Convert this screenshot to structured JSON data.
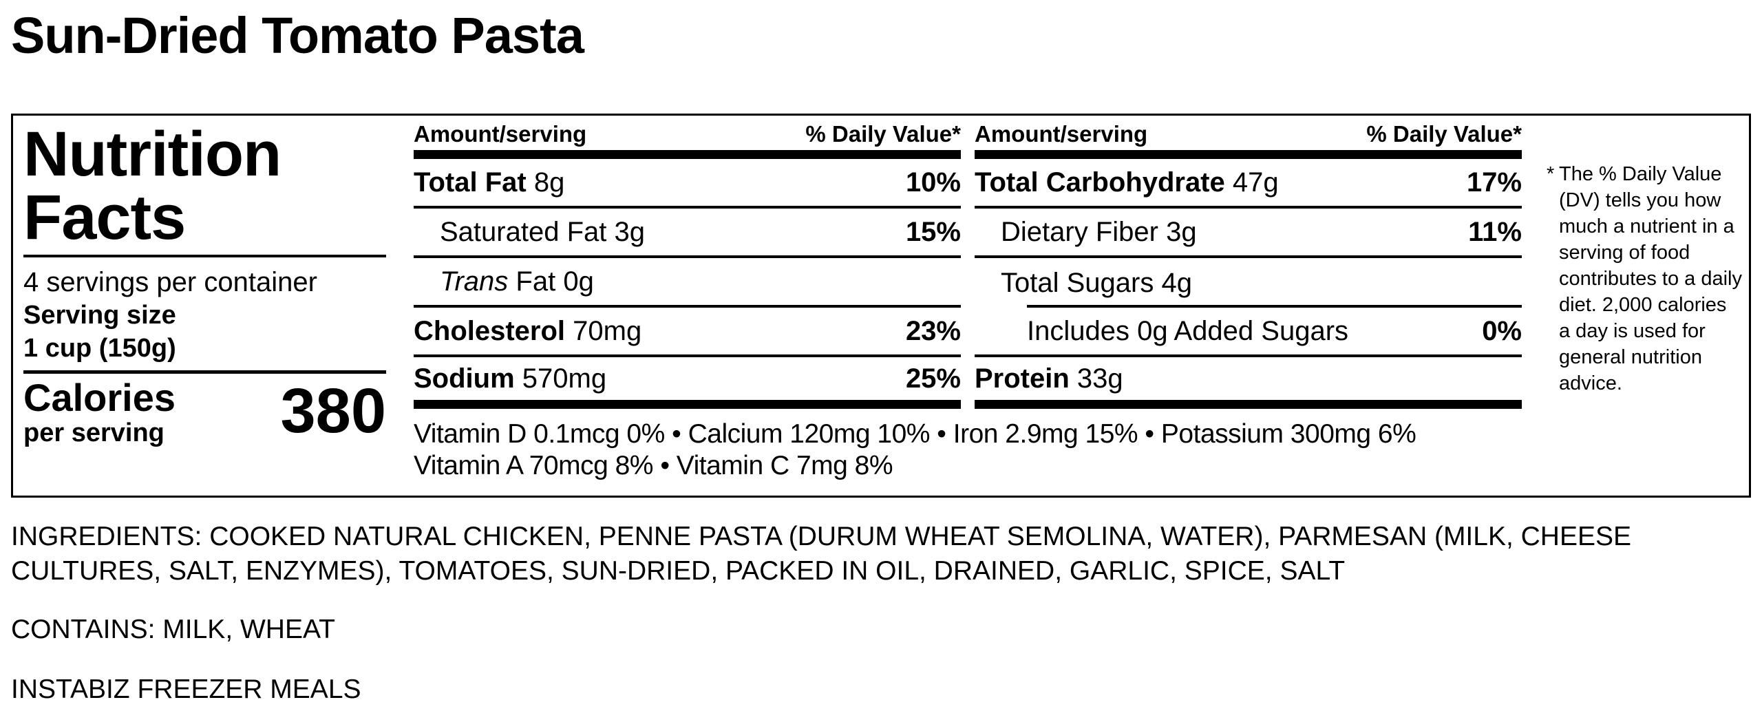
{
  "title": "Sun-Dried Tomato Pasta",
  "label": {
    "heading_line1": "Nutrition",
    "heading_line2": "Facts",
    "servings_per_container": "4 servings per container",
    "serving_size_label": "Serving size",
    "serving_size_value": "1 cup (150g)",
    "calories_label": "Calories",
    "calories_sub": "per serving",
    "calories_value": "380",
    "header_amount": "Amount/serving",
    "header_dv": "% Daily Value*",
    "left_rows": [
      {
        "name": "Total Fat",
        "amount": "8g",
        "dv": "10%"
      },
      {
        "name": "Saturated Fat",
        "amount": "3g",
        "dv": "15%"
      },
      {
        "name": "Trans",
        "name_rest": "Fat",
        "amount": "0g",
        "dv": ""
      },
      {
        "name": "Cholesterol",
        "amount": "70mg",
        "dv": "23%"
      },
      {
        "name": "Sodium",
        "amount": "570mg",
        "dv": "25%"
      }
    ],
    "right_rows": [
      {
        "name": "Total Carbohydrate",
        "amount": "47g",
        "dv": "17%"
      },
      {
        "name": "Dietary Fiber",
        "amount": "3g",
        "dv": "11%"
      },
      {
        "name": "Total Sugars",
        "amount": "4g",
        "dv": ""
      },
      {
        "name": "Includes 0g Added Sugars",
        "dv": "0%"
      },
      {
        "name": "Protein",
        "amount": "33g",
        "dv": ""
      }
    ],
    "vitamins_line1": "Vitamin D 0.1mcg 0% • Calcium 120mg 10% • Iron 2.9mg 15% • Potassium 300mg 6%",
    "vitamins_line2": "Vitamin A 70mcg 8% • Vitamin C 7mg 8%",
    "footnote_star": "*",
    "footnote": "The % Daily Value (DV) tells you how much a nutrient in a serving of food contributes to a daily diet. 2,000 calories a day is used for general nutrition advice."
  },
  "ingredients": "INGREDIENTS: COOKED NATURAL CHICKEN, PENNE PASTA (DURUM WHEAT SEMOLINA, WATER), PARMESAN (MILK, CHEESE CULTURES, SALT, ENZYMES), TOMATOES, SUN-DRIED, PACKED IN OIL, DRAINED, GARLIC, SPICE, SALT",
  "contains": "CONTAINS: MILK, WHEAT",
  "brand": "INSTABIZ FREEZER MEALS"
}
